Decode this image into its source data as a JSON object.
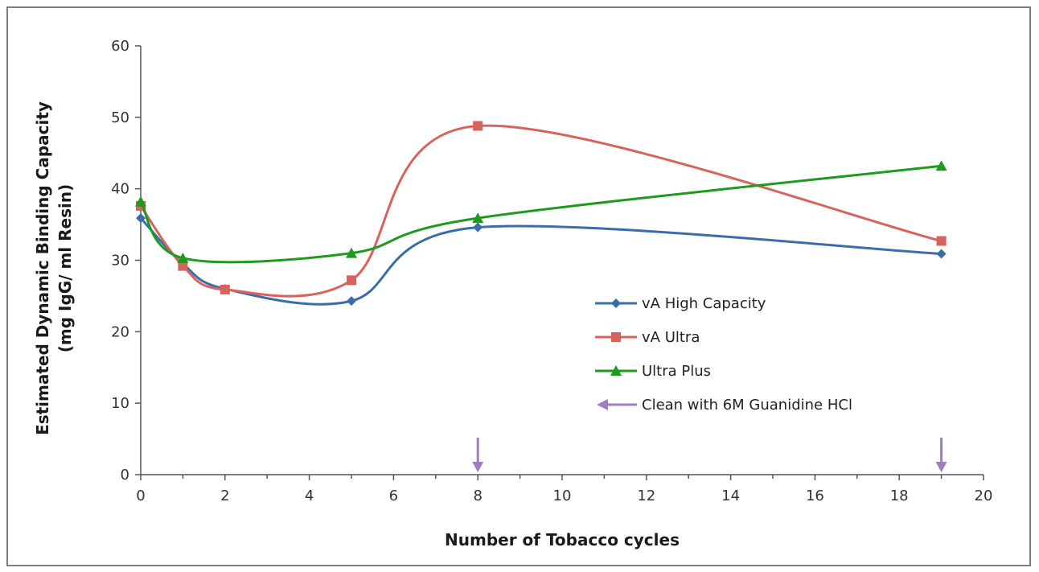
{
  "chart_data": {
    "type": "line",
    "title": "",
    "xlabel": "Number of Tobacco cycles",
    "ylabel": "Estimated Dynamic Binding Capacity",
    "ylabel2": "(mg IgG/ ml Resin)",
    "xlim": [
      0,
      20
    ],
    "ylim": [
      0,
      60
    ],
    "xticks": [
      "0",
      "2",
      "4",
      "6",
      "8",
      "10",
      "12",
      "14",
      "16",
      "18",
      "20"
    ],
    "yticks": [
      "0",
      "10",
      "20",
      "30",
      "40",
      "50",
      "60"
    ],
    "grid": false,
    "legend_position": "right",
    "smooth": true,
    "series": [
      {
        "name": "vA High Capacity",
        "color": "#3b6ea8",
        "marker": "diamond",
        "x": [
          0,
          1,
          2,
          5,
          8,
          19
        ],
        "y": [
          35.9,
          29.5,
          26.0,
          24.3,
          34.6,
          30.9
        ]
      },
      {
        "name": "vA Ultra",
        "color": "#d8625c",
        "marker": "square",
        "x": [
          0,
          1,
          2,
          5,
          8,
          19
        ],
        "y": [
          37.6,
          29.2,
          25.9,
          27.2,
          48.8,
          32.7
        ]
      },
      {
        "name": "Ultra Plus",
        "color": "#1e9a1e",
        "marker": "triangle",
        "x": [
          0,
          1,
          2,
          5,
          8,
          19
        ],
        "y": [
          38.2,
          30.3,
          null,
          31.0,
          35.9,
          43.2
        ]
      }
    ],
    "annotations": {
      "name": "Clean with 6M Guanidine HCl",
      "color": "#9b7fc0",
      "marker": "arrow-down",
      "x": [
        8,
        19
      ]
    }
  }
}
